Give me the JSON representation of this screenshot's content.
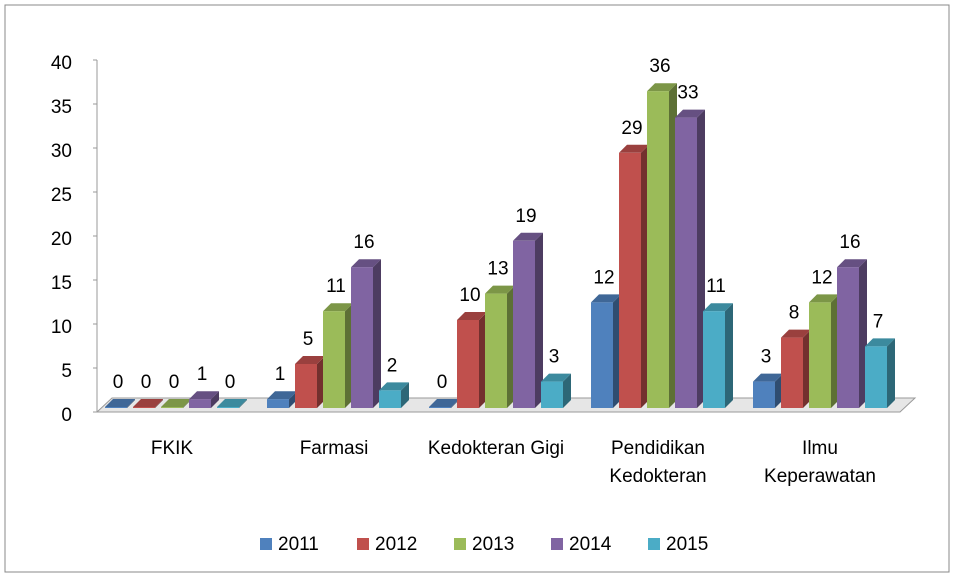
{
  "chart_data": {
    "type": "bar3d",
    "categories": [
      "FKIK",
      "Farmasi",
      "Kedokteran Gigi",
      "Pendidikan Kedokteran",
      "Ilmu Keperawatan"
    ],
    "series": [
      {
        "name": "2011",
        "color": "#4f81bd",
        "values": [
          0,
          1,
          0,
          12,
          3
        ]
      },
      {
        "name": "2012",
        "color": "#c0504d",
        "values": [
          0,
          5,
          10,
          29,
          8
        ]
      },
      {
        "name": "2013",
        "color": "#9bbb59",
        "values": [
          0,
          11,
          13,
          36,
          12
        ]
      },
      {
        "name": "2014",
        "color": "#8064a2",
        "values": [
          1,
          16,
          19,
          33,
          16
        ]
      },
      {
        "name": "2015",
        "color": "#4bacc6",
        "values": [
          0,
          2,
          3,
          11,
          7
        ]
      }
    ],
    "ylim": [
      0,
      40
    ],
    "yticks": [
      0,
      5,
      10,
      15,
      20,
      25,
      30,
      35,
      40
    ],
    "legend": "bottom"
  }
}
